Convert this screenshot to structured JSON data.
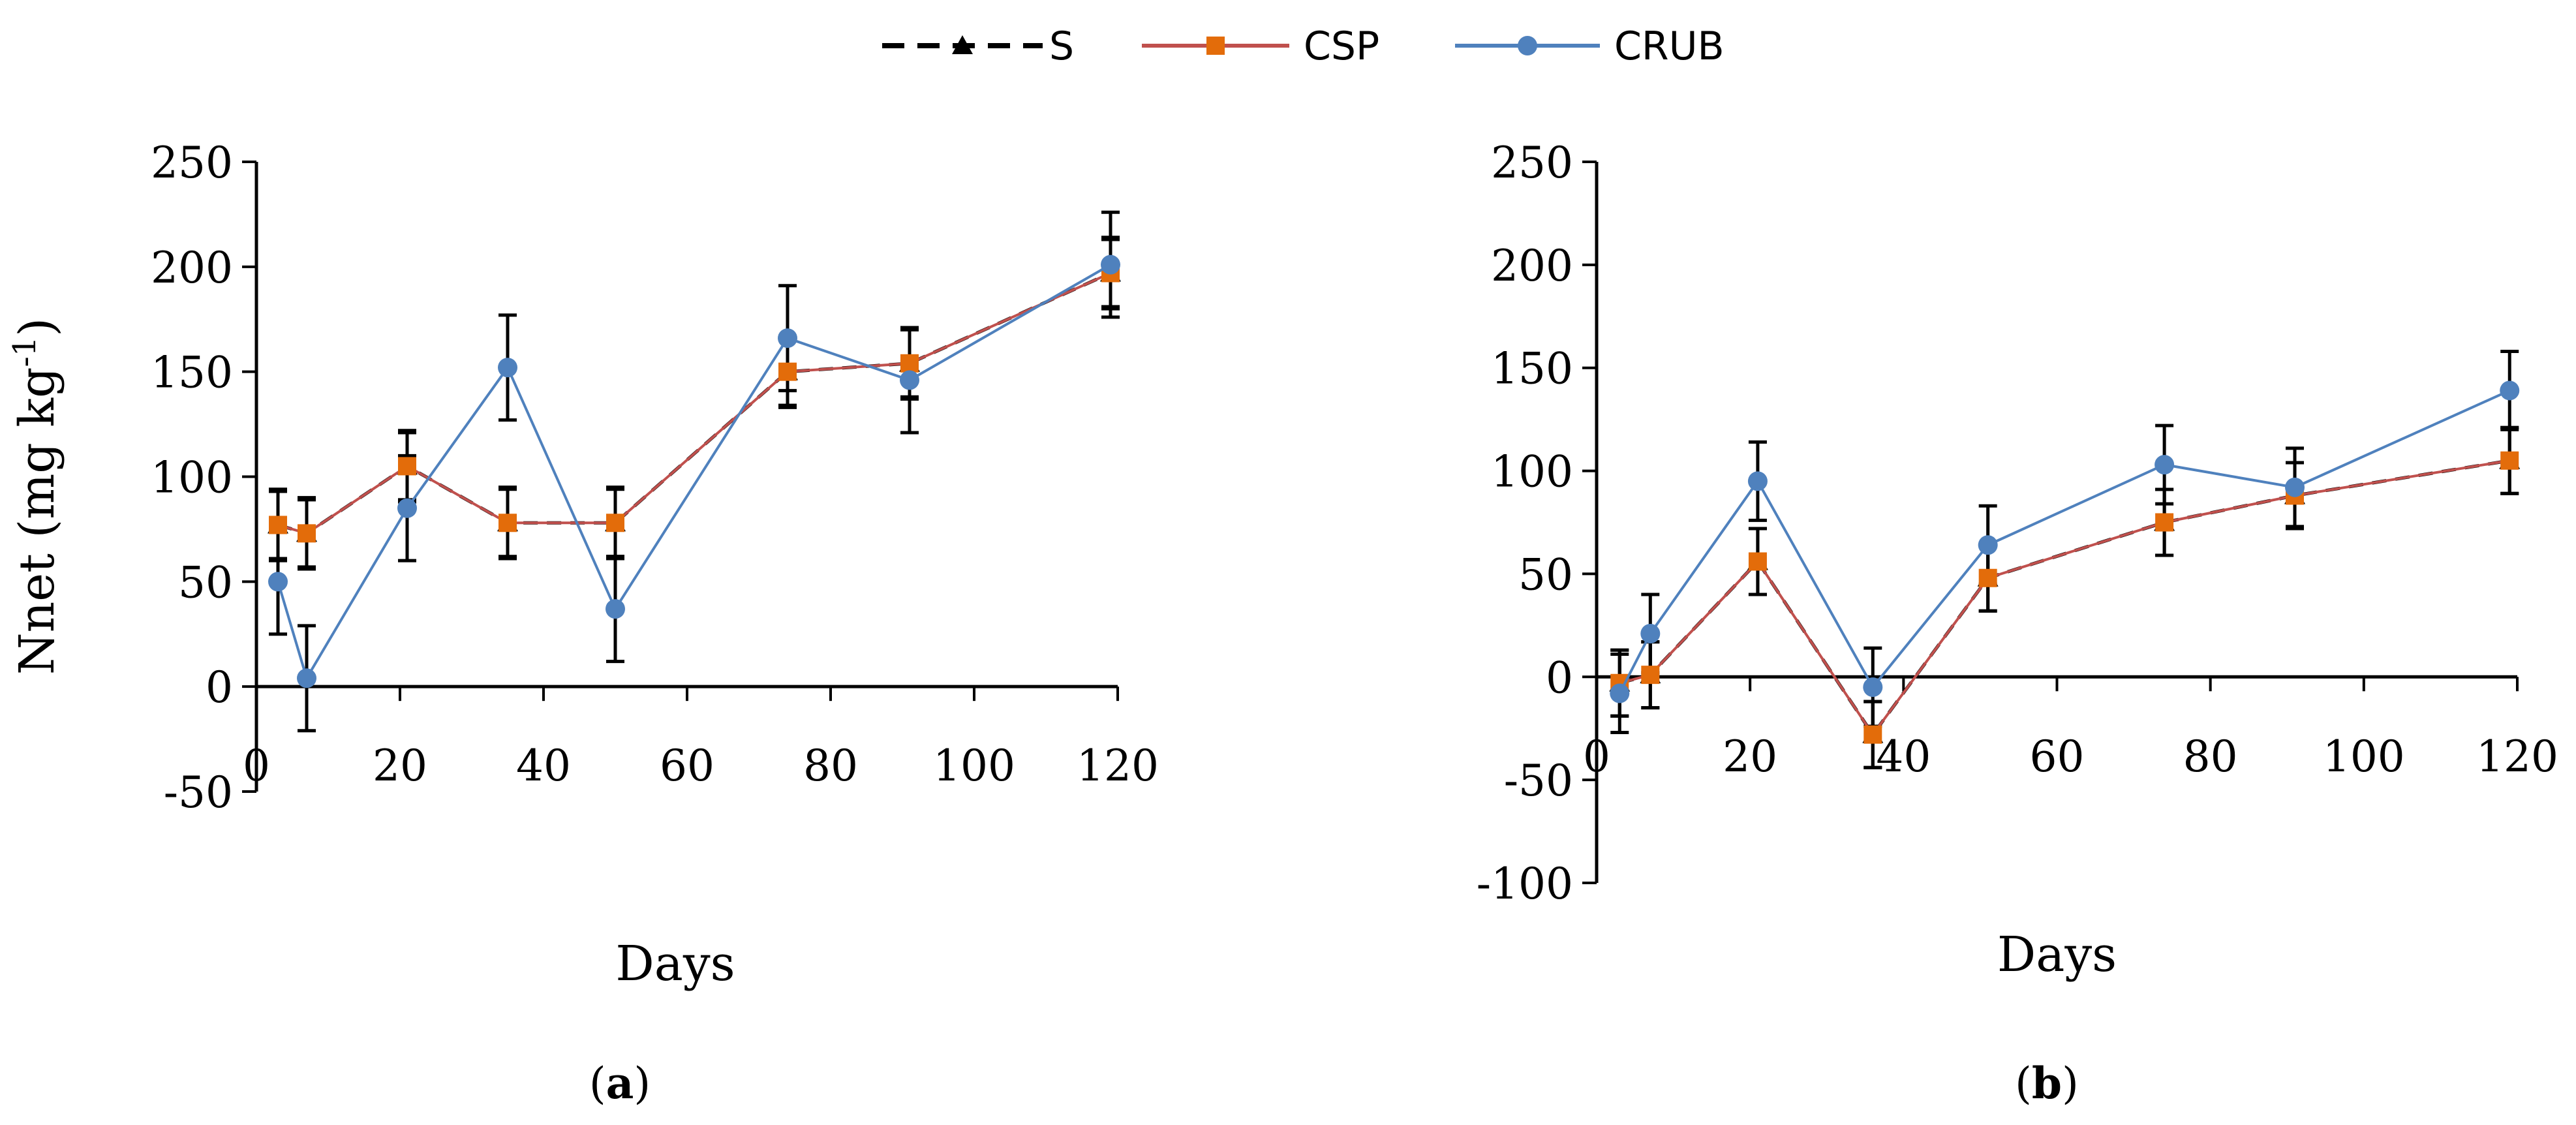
{
  "legend": [
    {
      "name": "S",
      "color": "#000000",
      "marker": "triangle",
      "dash": true
    },
    {
      "name": "CSP",
      "color": "#c0504d",
      "marker_color": "#e36c0a",
      "marker": "square",
      "dash": false
    },
    {
      "name": "CRUB",
      "color": "#4f81bd",
      "marker_color": "#4f81bd",
      "marker": "circle",
      "dash": false
    }
  ],
  "chart_data": [
    {
      "type": "line",
      "panel": "a",
      "caption_label": "a",
      "xlabel": "Days",
      "ylabel": "Nnet (mg kg",
      "ylabel_sup": "-1",
      "ylabel_close": ")",
      "xlim": [
        0,
        120
      ],
      "ylim": [
        -50,
        250
      ],
      "xticks": [
        0,
        20,
        40,
        60,
        80,
        100,
        120
      ],
      "yticks": [
        -50,
        0,
        50,
        100,
        150,
        200,
        250
      ],
      "series": [
        {
          "name": "S",
          "x": [
            3,
            7,
            21,
            35,
            50,
            74,
            91,
            119
          ],
          "y": [
            77,
            73,
            105,
            78,
            78,
            150,
            154,
            197
          ],
          "err": [
            16,
            16,
            16,
            16,
            16,
            16,
            16,
            16
          ]
        },
        {
          "name": "CSP",
          "x": [
            3,
            7,
            21,
            35,
            50,
            74,
            91,
            119
          ],
          "y": [
            77,
            73,
            105,
            78,
            78,
            150,
            154,
            197
          ],
          "err": [
            17,
            17,
            17,
            17,
            17,
            17,
            17,
            17
          ]
        },
        {
          "name": "CRUB",
          "x": [
            3,
            7,
            21,
            35,
            50,
            74,
            91,
            119
          ],
          "y": [
            50,
            4,
            85,
            152,
            37,
            166,
            146,
            201
          ],
          "err": [
            25,
            25,
            25,
            25,
            25,
            25,
            25,
            25
          ]
        }
      ]
    },
    {
      "type": "line",
      "panel": "b",
      "caption_label": "b",
      "xlabel": "Days",
      "xlim": [
        0,
        120
      ],
      "ylim": [
        -100,
        250
      ],
      "xticks": [
        0,
        20,
        40,
        60,
        80,
        100,
        120
      ],
      "yticks": [
        -100,
        -50,
        0,
        50,
        100,
        150,
        200,
        250
      ],
      "series": [
        {
          "name": "S",
          "x": [
            3,
            7,
            21,
            36,
            51,
            74,
            91,
            119
          ],
          "y": [
            -3,
            1,
            56,
            -28,
            48,
            75,
            88,
            105
          ],
          "err": [
            16,
            16,
            16,
            16,
            16,
            16,
            16,
            16
          ]
        },
        {
          "name": "CSP",
          "x": [
            3,
            7,
            21,
            36,
            51,
            74,
            91,
            119
          ],
          "y": [
            -3,
            1,
            56,
            -28,
            48,
            75,
            88,
            105
          ],
          "err": [
            16,
            16,
            16,
            16,
            16,
            16,
            16,
            16
          ]
        },
        {
          "name": "CRUB",
          "x": [
            3,
            7,
            21,
            36,
            51,
            74,
            91,
            119
          ],
          "y": [
            -8,
            21,
            95,
            -5,
            64,
            103,
            92,
            139
          ],
          "err": [
            19,
            19,
            19,
            19,
            19,
            19,
            19,
            19
          ]
        }
      ]
    }
  ]
}
